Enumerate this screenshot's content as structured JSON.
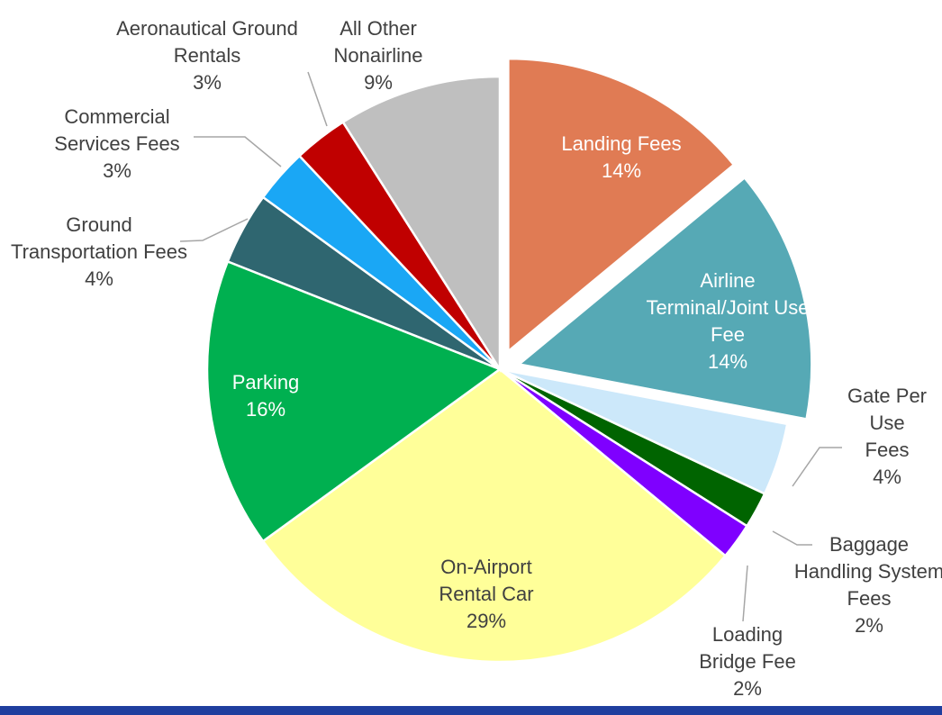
{
  "chart_data": {
    "type": "pie",
    "categories": [
      "Landing Fees",
      "Airline Terminal/Joint Use Fee",
      "Gate Per Use Fees",
      "Baggage Handling System Fees",
      "Loading Bridge Fee",
      "On-Airport Rental Car",
      "Parking",
      "Ground Transportation Fees",
      "Commercial Services Fees",
      "Aeronautical Ground Rentals",
      "All Other Nonairline"
    ],
    "values": [
      14,
      14,
      4,
      2,
      2,
      29,
      16,
      4,
      3,
      3,
      9
    ],
    "value_labels": [
      "14%",
      "14%",
      "4%",
      "2%",
      "2%",
      "29%",
      "16%",
      "4%",
      "3%",
      "3%",
      "9%"
    ],
    "colors": [
      "#E07B54",
      "#56A9B5",
      "#CCE8FA",
      "#006400",
      "#7F00FF",
      "#FFFF99",
      "#00B050",
      "#2F6670",
      "#1AA7F5",
      "#C00000",
      "#BFBFBF"
    ],
    "exploded": [
      true,
      true,
      false,
      false,
      false,
      false,
      false,
      false,
      false,
      false,
      false
    ]
  }
}
